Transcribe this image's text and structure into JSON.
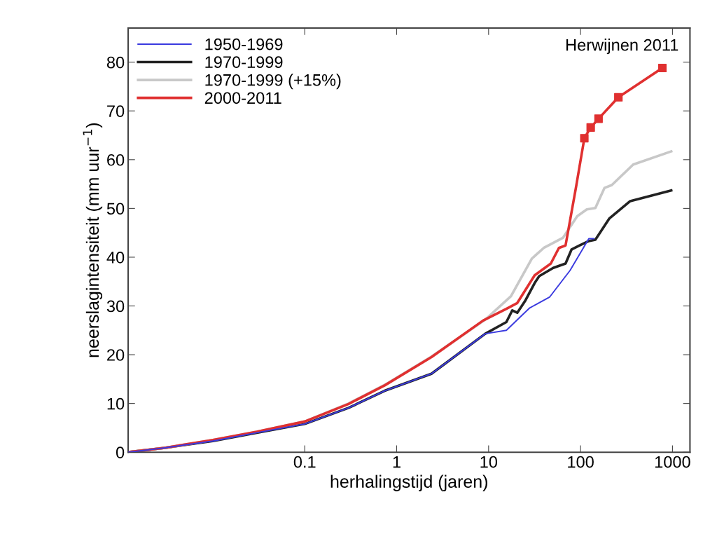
{
  "chart_data": {
    "type": "line",
    "xlabel": "herhalingstijd (jaren)",
    "ylabel": "neerslagintensiteit (mm uur$^{−1}$)",
    "annotations": [
      "Herwijnen 2011"
    ],
    "log": "x",
    "xlim": [
      0.0012,
      1550
    ],
    "xticks": [
      0.1,
      1,
      10,
      100,
      1000
    ],
    "ylim": [
      0,
      87
    ],
    "yticks": [
      0,
      10,
      20,
      30,
      40,
      50,
      60,
      70,
      80
    ],
    "grid": false,
    "legend": "top left",
    "marker": "none",
    "line_style": "solid",
    "series": [
      {
        "name": "1950-1969",
        "color": "#3a3adf",
        "x": [
          0.0012,
          0.003,
          0.01,
          0.03,
          0.1,
          0.3,
          0.74,
          2.39,
          9.2,
          15.6,
          28,
          46,
          77,
          123,
          139
        ],
        "values": [
          0,
          0.9,
          2.3,
          4.0,
          5.8,
          9.1,
          12.6,
          16.1,
          24.3,
          25.0,
          29.6,
          31.8,
          37.3,
          43.8,
          43.8
        ]
      },
      {
        "name": "1970-1999",
        "color": "#222222",
        "x": [
          0.0012,
          0.003,
          0.01,
          0.03,
          0.1,
          0.3,
          0.74,
          2.39,
          9.2,
          15.6,
          18.1,
          20.5,
          24.9,
          31.7,
          35.5,
          50.4,
          68.7,
          80,
          97.7,
          123,
          145,
          205,
          347,
          970
        ],
        "values": [
          0,
          0.9,
          2.3,
          4.0,
          5.8,
          9.1,
          12.6,
          16.1,
          24.3,
          26.7,
          29.1,
          28.6,
          31.0,
          34.7,
          36.1,
          37.8,
          38.7,
          41.6,
          42.4,
          43.3,
          43.6,
          47.9,
          51.5,
          53.7
        ]
      },
      {
        "name": "1970-1999 (+15%)",
        "color": "#c8c8c8",
        "x": [
          0.0012,
          0.003,
          0.01,
          0.03,
          0.1,
          0.3,
          0.74,
          2.39,
          9.2,
          17.5,
          29.5,
          39.8,
          64.6,
          92,
          117,
          145,
          182,
          219,
          374,
          970
        ],
        "values": [
          0,
          0.9,
          2.5,
          4.2,
          6.3,
          10.0,
          13.8,
          19.6,
          27.2,
          32.0,
          39.7,
          41.9,
          44.0,
          48.4,
          49.8,
          50.1,
          54.2,
          54.8,
          59.0,
          61.7
        ]
      },
      {
        "name": "2000-2011",
        "color": "#e03030",
        "x": [
          0.0012,
          0.003,
          0.01,
          0.03,
          0.1,
          0.3,
          0.74,
          2.39,
          8.7,
          15.6,
          20.5,
          31.7,
          47.5,
          58.2,
          68.7,
          89,
          110,
          129,
          157,
          258,
          776
        ],
        "values": [
          0,
          0.9,
          2.5,
          4.2,
          6.3,
          9.9,
          13.7,
          19.5,
          27.0,
          29.4,
          30.6,
          36.3,
          38.7,
          41.9,
          42.4,
          54.2,
          64.4,
          66.6,
          68.4,
          72.8,
          78.8
        ]
      },
      {
        "type": "scatter",
        "marker": "square",
        "color": "#e03030",
        "x": [
          110,
          129,
          157,
          258,
          776
        ],
        "values": [
          64.4,
          66.6,
          68.4,
          72.8,
          78.8
        ]
      }
    ]
  }
}
